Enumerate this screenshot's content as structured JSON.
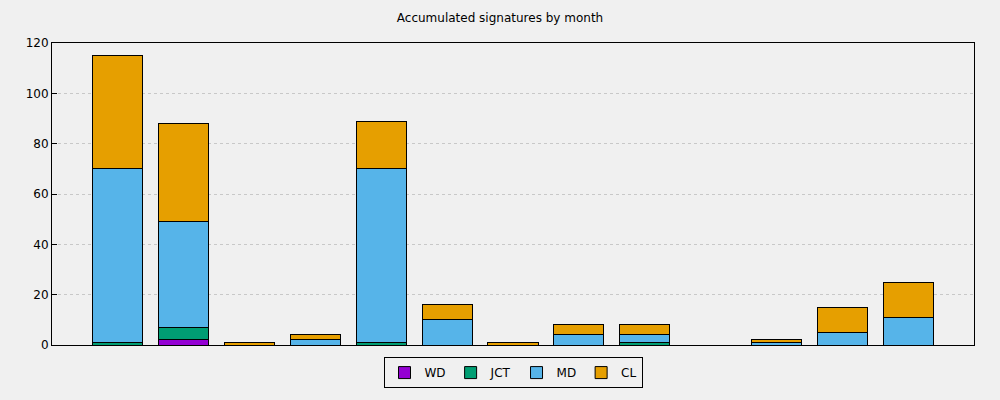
{
  "chart_data": {
    "type": "bar",
    "title": "Accumulated signatures by month",
    "categories": [
      null,
      null,
      null,
      null,
      null,
      null,
      null,
      null,
      null,
      null,
      null,
      null,
      null
    ],
    "series": [
      {
        "name": "WD",
        "color": "#9400d3",
        "values": [
          0,
          2,
          0,
          0,
          0,
          0,
          0,
          0,
          0,
          0,
          0,
          0,
          0
        ]
      },
      {
        "name": "JCT",
        "color": "#009e73",
        "values": [
          1,
          5,
          0,
          0,
          1,
          0,
          0,
          0,
          1,
          0,
          0,
          0,
          0
        ]
      },
      {
        "name": "MD",
        "color": "#56b4e9",
        "values": [
          69,
          42,
          0,
          2,
          69,
          10,
          0,
          4,
          3,
          0,
          1,
          5,
          11
        ]
      },
      {
        "name": "CL",
        "color": "#e69f00",
        "values": [
          45,
          39,
          1,
          2,
          19,
          6,
          1,
          4,
          4,
          0,
          1,
          10,
          14
        ]
      }
    ],
    "ylim": [
      0,
      120
    ],
    "yticks": [
      0,
      20,
      40,
      60,
      80,
      100,
      120
    ],
    "grid": true,
    "stacked": true,
    "legend": "bottom",
    "tick_labels": "y"
  }
}
